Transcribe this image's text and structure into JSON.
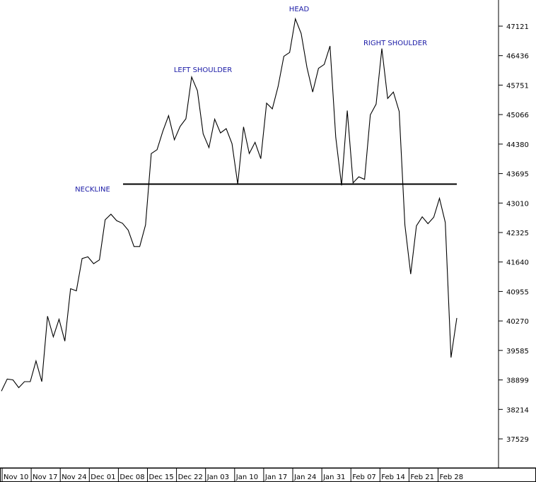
{
  "chart_data": {
    "type": "line",
    "y_ticks": [
      "47121",
      "46436",
      "45751",
      "45066",
      "44380",
      "43695",
      "43010",
      "42325",
      "41640",
      "40955",
      "40270",
      "39585",
      "38899",
      "38214",
      "37529"
    ],
    "x_ticks": [
      "Nov 10",
      "Nov 17",
      "Nov 24",
      "Dec 01",
      "Dec 08",
      "Dec 15",
      "Dec 22",
      "Jan 03",
      "Jan 10",
      "Jan 17",
      "Jan 24",
      "Jan 31",
      "Feb 07",
      "Feb 14",
      "Feb 21",
      "Feb 28"
    ],
    "ylim": [
      37100,
      47600
    ],
    "grid": false,
    "series": [
      {
        "values": [
          38640,
          38920,
          38900,
          38720,
          38860,
          38860,
          39340,
          38860,
          40380,
          39900,
          40310,
          39800,
          41020,
          40970,
          41720,
          41760,
          41600,
          41690,
          42620,
          42750,
          42600,
          42540,
          42380,
          42000,
          42000,
          42500,
          44160,
          44250,
          44680,
          45040,
          44480,
          44790,
          44970,
          45940,
          45620,
          44620,
          44300,
          44960,
          44640,
          44740,
          44390,
          43450,
          44780,
          44160,
          44420,
          44040,
          45330,
          45200,
          45720,
          46420,
          46510,
          47290,
          46950,
          46160,
          45590,
          46140,
          46230,
          46660,
          44540,
          43420,
          45160,
          43480,
          43620,
          43560,
          45060,
          45310,
          46600,
          45440,
          45590,
          45140,
          42500,
          41360,
          42480,
          42690,
          42530,
          42680,
          43120,
          42560,
          39420,
          40340
        ]
      },
      {
        "values": [
          43450,
          43450
        ]
      }
    ],
    "annotations": [
      "HEAD",
      "LEFT SHOULDER",
      "RIGHT SHOULDER",
      "NECKLINE"
    ]
  },
  "colors": {
    "annotation": "#1a1aa6",
    "line": "#000000"
  }
}
